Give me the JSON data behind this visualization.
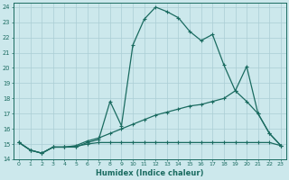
{
  "xlabel": "Humidex (Indice chaleur)",
  "background_color": "#cce8ec",
  "grid_color": "#aacdd4",
  "line_color": "#1a6b60",
  "xlim": [
    -0.5,
    23.5
  ],
  "ylim": [
    14,
    24.3
  ],
  "xticks": [
    0,
    1,
    2,
    3,
    4,
    5,
    6,
    7,
    8,
    9,
    10,
    11,
    12,
    13,
    14,
    15,
    16,
    17,
    18,
    19,
    20,
    21,
    22,
    23
  ],
  "yticks": [
    14,
    15,
    16,
    17,
    18,
    19,
    20,
    21,
    22,
    23,
    24
  ],
  "line1_x": [
    0,
    1,
    2,
    3,
    4,
    5,
    6,
    7,
    8,
    9,
    10,
    11,
    12,
    13,
    14,
    15,
    16,
    17,
    18,
    19,
    20,
    21,
    22,
    23
  ],
  "line1_y": [
    15.1,
    14.6,
    14.4,
    14.8,
    14.8,
    14.8,
    15.1,
    15.3,
    17.8,
    16.2,
    21.5,
    23.2,
    24.0,
    23.7,
    23.3,
    22.4,
    21.8,
    22.2,
    20.2,
    18.5,
    20.1,
    17.0,
    15.7,
    14.9
  ],
  "line2_x": [
    0,
    1,
    2,
    3,
    4,
    5,
    6,
    7,
    8,
    9,
    10,
    11,
    12,
    13,
    14,
    15,
    16,
    17,
    18,
    19,
    20,
    21,
    22,
    23
  ],
  "line2_y": [
    15.1,
    14.6,
    14.4,
    14.8,
    14.8,
    14.9,
    15.2,
    15.4,
    15.7,
    16.0,
    16.3,
    16.6,
    16.9,
    17.1,
    17.3,
    17.5,
    17.6,
    17.8,
    18.0,
    18.5,
    17.8,
    17.0,
    15.7,
    14.9
  ],
  "line3_x": [
    0,
    1,
    2,
    3,
    4,
    5,
    6,
    7,
    8,
    9,
    10,
    11,
    12,
    13,
    14,
    15,
    16,
    17,
    18,
    19,
    20,
    21,
    22,
    23
  ],
  "line3_y": [
    15.1,
    14.6,
    14.4,
    14.8,
    14.8,
    14.85,
    15.0,
    15.1,
    15.1,
    15.1,
    15.1,
    15.1,
    15.1,
    15.1,
    15.1,
    15.1,
    15.1,
    15.1,
    15.1,
    15.1,
    15.1,
    15.1,
    15.1,
    14.9
  ]
}
